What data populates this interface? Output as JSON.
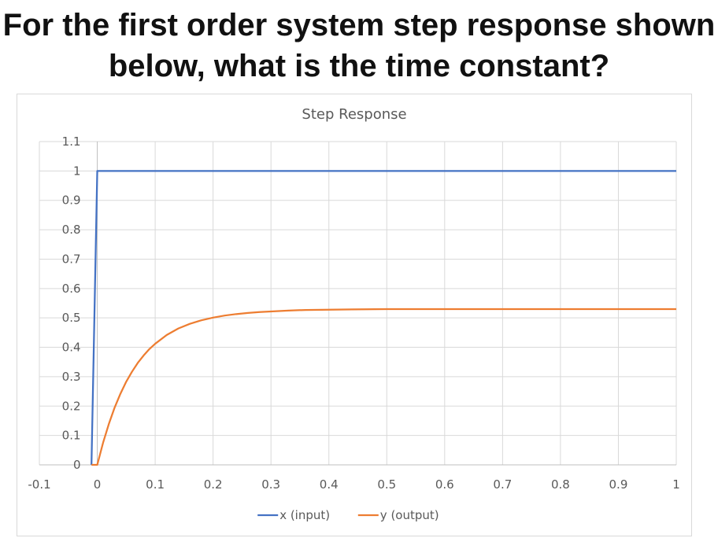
{
  "question": {
    "line1": "For the first order system step response shown",
    "line2": "below, what is the time constant?"
  },
  "chart_data": {
    "type": "line",
    "title": "Step Response",
    "xlabel": "",
    "ylabel": "",
    "xlim": [
      -0.1,
      1
    ],
    "ylim": [
      0,
      1.1
    ],
    "x_ticks": [
      "-0.1",
      "0",
      "0.1",
      "0.2",
      "0.3",
      "0.4",
      "0.5",
      "0.6",
      "0.7",
      "0.8",
      "0.9",
      "1"
    ],
    "y_ticks": [
      "0",
      "0.1",
      "0.2",
      "0.3",
      "0.4",
      "0.5",
      "0.6",
      "0.7",
      "0.8",
      "0.9",
      "1",
      "1.1"
    ],
    "grid": true,
    "legend_position": "bottom",
    "series": [
      {
        "name": "x (input)",
        "color": "#4472C4",
        "x": [
          -0.01,
          0,
          1
        ],
        "y": [
          0,
          1,
          1
        ]
      },
      {
        "name": "y (output)",
        "color": "#ED7D31",
        "x": [
          -0.01,
          0,
          0.01,
          0.02,
          0.03,
          0.04,
          0.05,
          0.06,
          0.07,
          0.08,
          0.09,
          0.1,
          0.12,
          0.14,
          0.16,
          0.18,
          0.2,
          0.22,
          0.24,
          0.26,
          0.28,
          0.3,
          0.33,
          0.36,
          0.4,
          0.44,
          0.5,
          0.6,
          0.7,
          0.8,
          0.9,
          1
        ],
        "y": [
          0,
          0,
          0.075,
          0.139,
          0.195,
          0.242,
          0.283,
          0.317,
          0.347,
          0.372,
          0.394,
          0.412,
          0.442,
          0.464,
          0.48,
          0.492,
          0.501,
          0.508,
          0.513,
          0.517,
          0.52,
          0.522,
          0.525,
          0.527,
          0.528,
          0.529,
          0.53,
          0.53,
          0.53,
          0.53,
          0.53,
          0.53
        ]
      }
    ]
  }
}
